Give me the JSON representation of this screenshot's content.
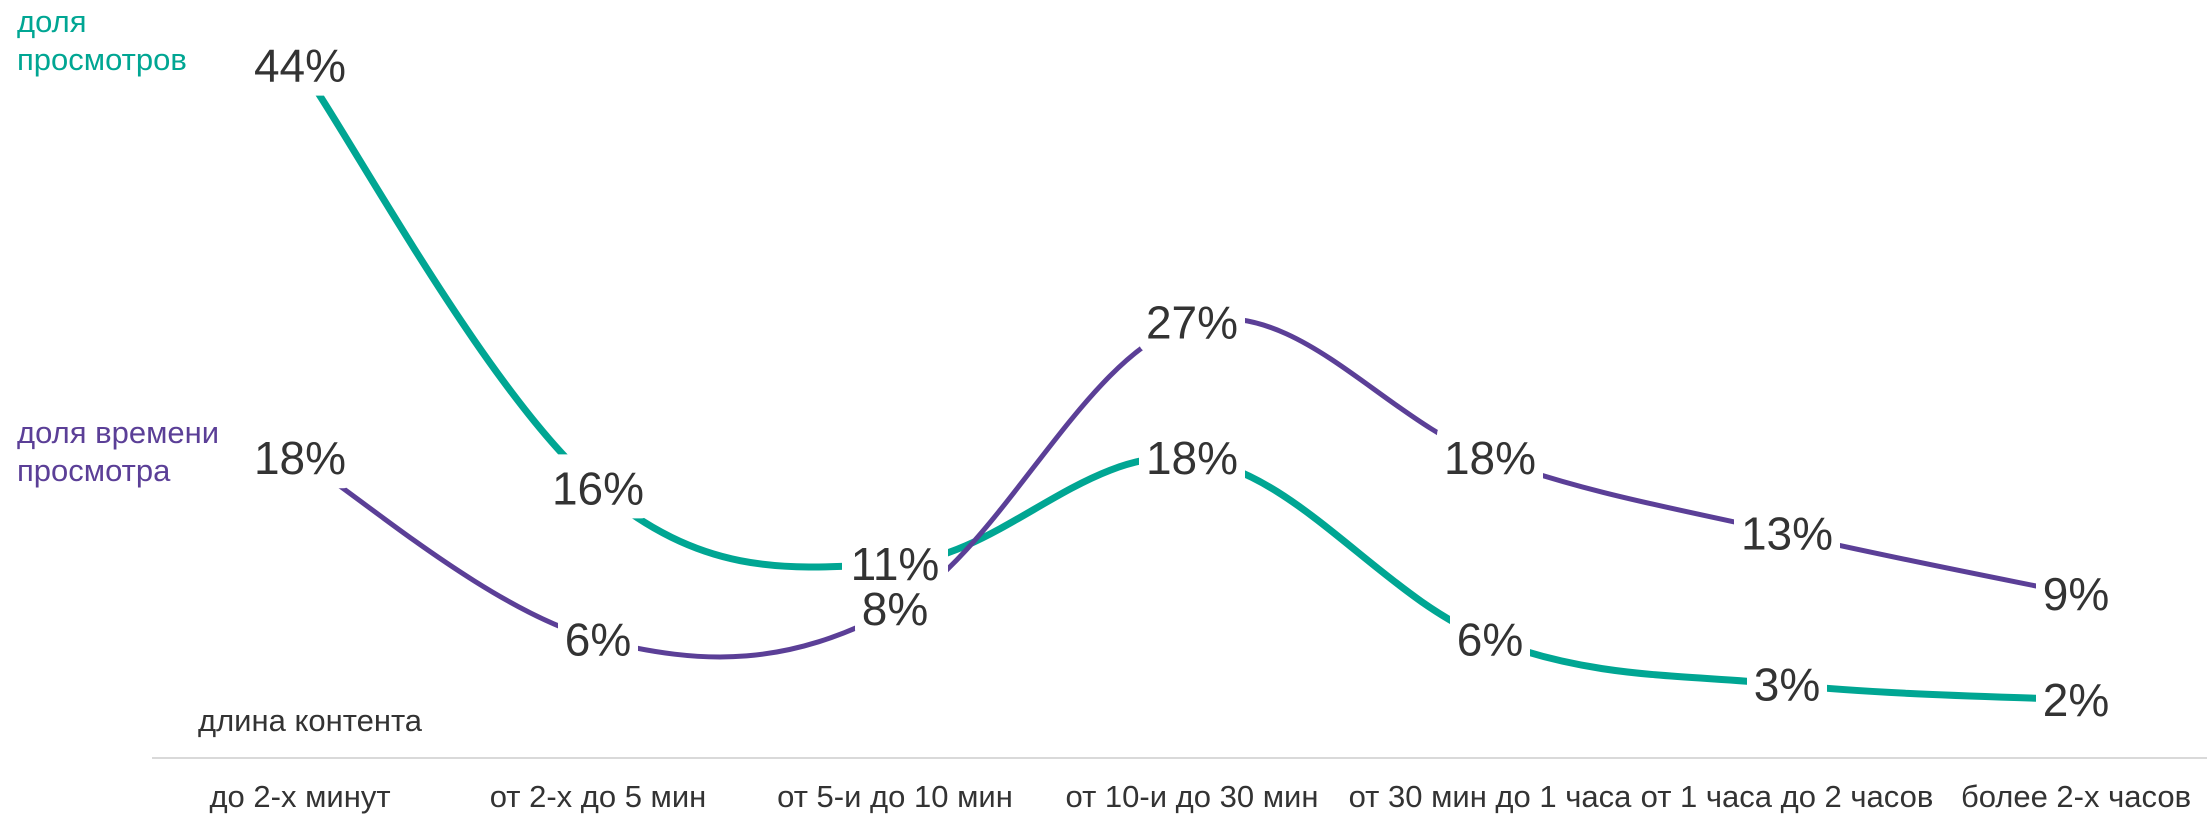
{
  "chart_data": {
    "type": "line",
    "categories": [
      "до 2-х минут",
      "от 2-х до 5 мин",
      "от 5-и до 10 мин",
      "от 10-и до 30 мин",
      "от 30 мин до 1 часа",
      "от 1 часа до 2 часов",
      "более 2-х часов"
    ],
    "xlabel": "длина контента",
    "ylabel": "",
    "title": "",
    "ylim": [
      0,
      46
    ],
    "grid": false,
    "series": [
      {
        "name_lines": [
          "доля",
          "просмотров"
        ],
        "color": "#00a693",
        "values": [
          44,
          16,
          11,
          18,
          6,
          3,
          2
        ],
        "labels": [
          "44%",
          "16%",
          "11%",
          "18%",
          "6%",
          "3%",
          "2%"
        ]
      },
      {
        "name_lines": [
          "доля времени",
          "просмотра"
        ],
        "color": "#5b3f97",
        "values": [
          18,
          6,
          8,
          27,
          18,
          13,
          9
        ],
        "labels": [
          "18%",
          "6%",
          "8%",
          "27%",
          "18%",
          "13%",
          "9%"
        ]
      }
    ]
  }
}
